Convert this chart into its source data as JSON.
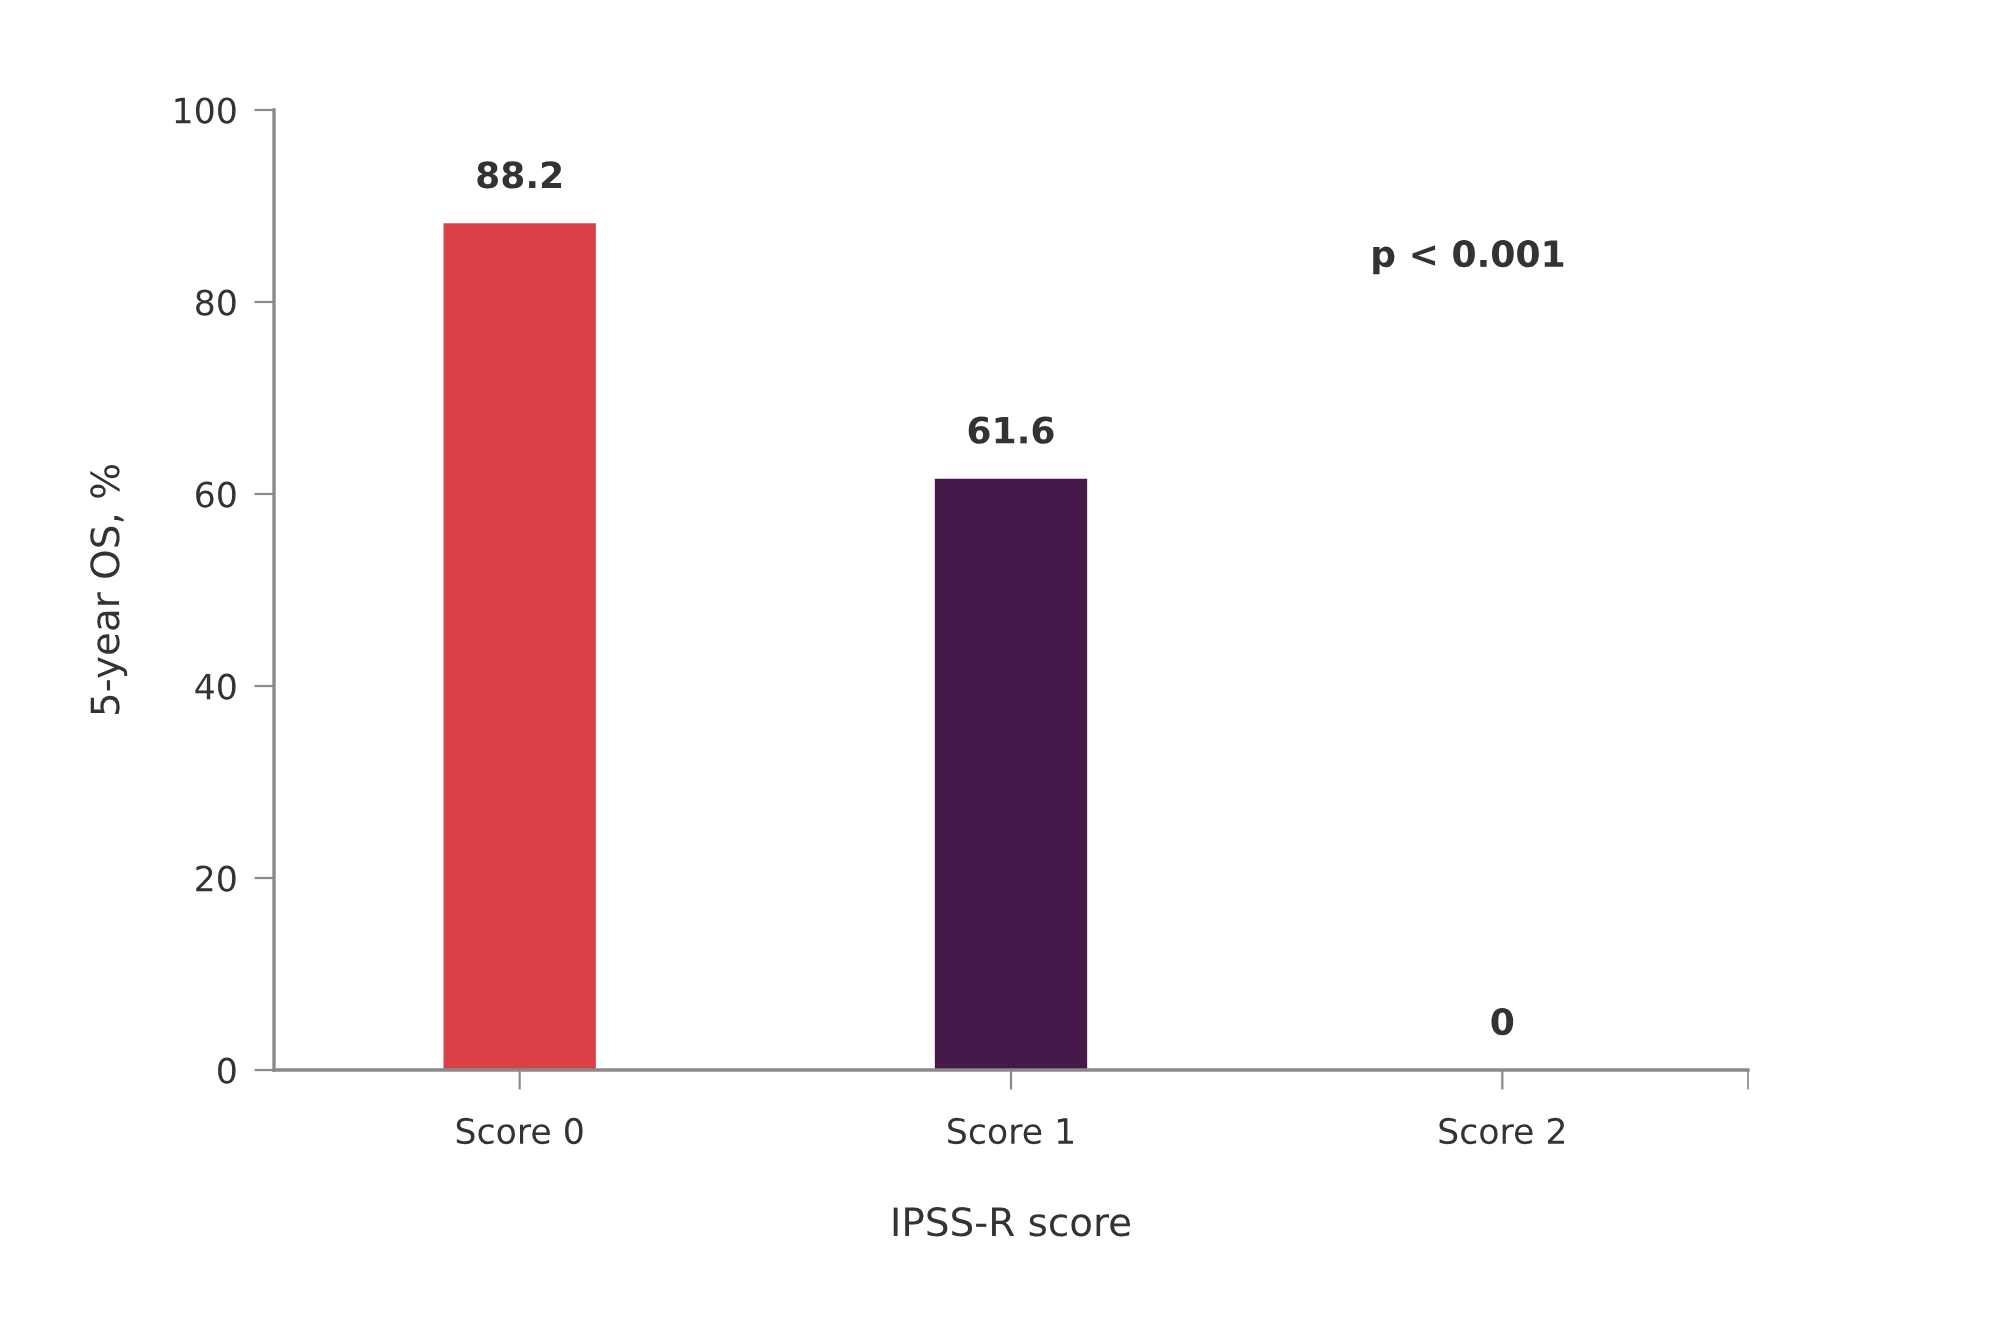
{
  "chart_data": {
    "type": "bar",
    "categories": [
      "Score 0",
      "Score 1",
      "Score 2"
    ],
    "values": [
      88.2,
      61.6,
      0
    ],
    "colors": [
      "#d94047",
      "#44194a",
      "#8c8c8c"
    ],
    "xlabel": "IPSS-R score",
    "ylabel": "5-year OS, %",
    "ylim": [
      0,
      100
    ],
    "yticks": [
      0,
      20,
      40,
      60,
      80,
      100
    ],
    "data_labels": true,
    "grid": false,
    "legend": false,
    "annotations": [
      "p < 0.001"
    ]
  }
}
